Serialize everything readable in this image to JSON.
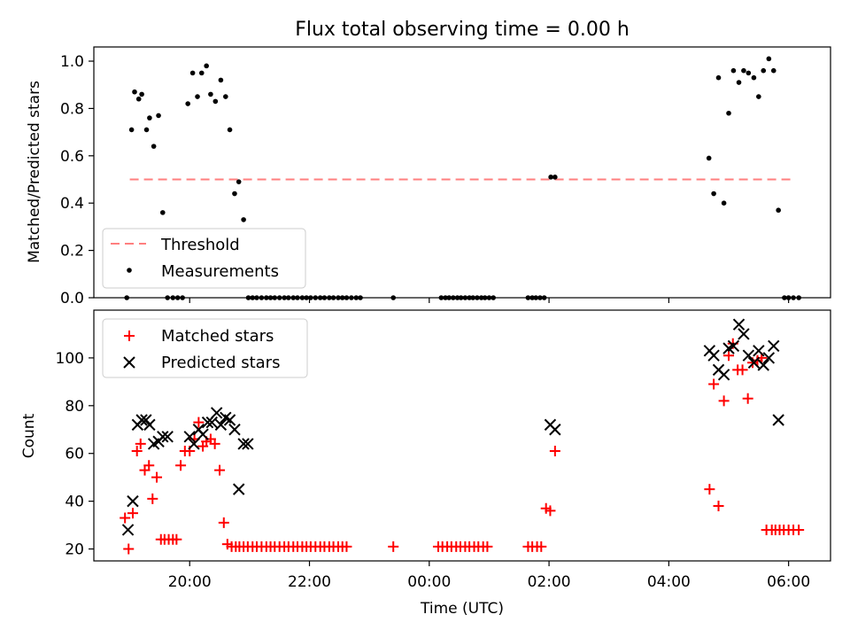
{
  "chart_data": [
    {
      "type": "scatter",
      "title": "Flux total observing time = 0.00 h",
      "xlabel": "",
      "ylabel": "Matched/Predicted stars",
      "x_unit": "hours relative to 00:00 UTC",
      "xlim": [
        -5.6,
        6.7
      ],
      "ylim": [
        0,
        1.06
      ],
      "yticks": [
        0.0,
        0.2,
        0.4,
        0.6,
        0.8,
        1.0
      ],
      "ytick_labels": [
        "0.0",
        "0.2",
        "0.4",
        "0.6",
        "0.8",
        "1.0"
      ],
      "legend_position": "lower-left",
      "grid": false,
      "threshold": {
        "name": "Threshold",
        "y": 0.5,
        "x_range": [
          -5.0,
          6.1
        ],
        "color": "#ff7f7f",
        "style": "dashed"
      },
      "series": [
        {
          "name": "Measurements",
          "color": "#000000",
          "marker": "dot",
          "x": [
            -5.05,
            -4.97,
            -4.92,
            -4.85,
            -4.8,
            -4.72,
            -4.67,
            -4.6,
            -4.52,
            -4.45,
            -4.37,
            -4.28,
            -4.2,
            -4.12,
            -4.03,
            -3.95,
            -3.87,
            -3.8,
            -3.72,
            -3.65,
            -3.57,
            -3.48,
            -3.4,
            -3.33,
            -3.25,
            -3.18,
            -3.1,
            -3.02,
            -2.95,
            -2.88,
            -2.8,
            -2.72,
            -2.65,
            -2.58,
            -2.5,
            -2.42,
            -2.35,
            -2.27,
            -2.2,
            -2.12,
            -2.05,
            -1.98,
            -1.9,
            -1.82,
            -1.75,
            -1.67,
            -1.6,
            -1.52,
            -1.45,
            -1.38,
            -1.3,
            -1.22,
            -1.15,
            -0.6,
            0.2,
            0.27,
            0.33,
            0.4,
            0.47,
            0.53,
            0.6,
            0.67,
            0.73,
            0.8,
            0.87,
            0.93,
            1.0,
            1.07,
            1.65,
            1.72,
            1.78,
            1.85,
            1.92,
            2.03,
            2.1,
            4.67,
            4.75,
            4.83,
            4.92,
            5.0,
            5.08,
            5.17,
            5.25,
            5.33,
            5.42,
            5.5,
            5.58,
            5.67,
            5.75,
            5.83,
            5.93,
            6.0,
            6.08,
            6.17
          ],
          "y": [
            0.0,
            0.71,
            0.87,
            0.84,
            0.86,
            0.71,
            0.76,
            0.64,
            0.77,
            0.36,
            0.0,
            0.0,
            0.0,
            0.0,
            0.82,
            0.95,
            0.85,
            0.95,
            0.98,
            0.86,
            0.83,
            0.92,
            0.85,
            0.71,
            0.44,
            0.49,
            0.33,
            0.0,
            0.0,
            0.0,
            0.0,
            0.0,
            0.0,
            0.0,
            0.0,
            0.0,
            0.0,
            0.0,
            0.0,
            0.0,
            0.0,
            0.0,
            0.0,
            0.0,
            0.0,
            0.0,
            0.0,
            0.0,
            0.0,
            0.0,
            0.0,
            0.0,
            0.0,
            0.0,
            0.0,
            0.0,
            0.0,
            0.0,
            0.0,
            0.0,
            0.0,
            0.0,
            0.0,
            0.0,
            0.0,
            0.0,
            0.0,
            0.0,
            0.0,
            0.0,
            0.0,
            0.0,
            0.0,
            0.51,
            0.51,
            0.59,
            0.44,
            0.93,
            0.4,
            0.78,
            0.96,
            0.91,
            0.96,
            0.95,
            0.93,
            0.85,
            0.96,
            1.01,
            0.96,
            0.37,
            0.0,
            0.0,
            0.0,
            0.0
          ]
        }
      ]
    },
    {
      "type": "scatter",
      "title": "",
      "xlabel": "Time (UTC)",
      "ylabel": "Count",
      "x_unit": "hours relative to 00:00 UTC",
      "xlim": [
        -5.6,
        6.7
      ],
      "ylim": [
        15,
        120
      ],
      "yticks": [
        20,
        40,
        60,
        80,
        100
      ],
      "ytick_labels": [
        "20",
        "40",
        "60",
        "80",
        "100"
      ],
      "xticks": [
        -4,
        -2,
        0,
        2,
        4,
        6
      ],
      "xtick_labels": [
        "20:00",
        "22:00",
        "00:00",
        "02:00",
        "04:00",
        "06:00"
      ],
      "legend_position": "upper-left",
      "grid": false,
      "series": [
        {
          "name": "Matched stars",
          "color": "#ff0000",
          "marker": "plus",
          "x": [
            -5.08,
            -5.02,
            -4.95,
            -4.88,
            -4.82,
            -4.75,
            -4.68,
            -4.62,
            -4.55,
            -4.48,
            -4.42,
            -4.35,
            -4.28,
            -4.22,
            -4.15,
            -4.08,
            -4.0,
            -3.92,
            -3.85,
            -3.78,
            -3.72,
            -3.65,
            -3.58,
            -3.5,
            -3.43,
            -3.37,
            -3.3,
            -3.23,
            -3.17,
            -3.1,
            -3.03,
            -2.95,
            -2.88,
            -2.8,
            -2.72,
            -2.65,
            -2.58,
            -2.5,
            -2.42,
            -2.35,
            -2.27,
            -2.2,
            -2.12,
            -2.05,
            -1.98,
            -1.9,
            -1.82,
            -1.75,
            -1.67,
            -1.6,
            -1.52,
            -1.45,
            -1.38,
            -0.6,
            0.15,
            0.22,
            0.3,
            0.37,
            0.45,
            0.52,
            0.6,
            0.67,
            0.75,
            0.82,
            0.9,
            0.97,
            1.65,
            1.72,
            1.8,
            1.87,
            1.95,
            2.02,
            2.1,
            4.68,
            4.75,
            4.83,
            4.92,
            5.0,
            5.07,
            5.15,
            5.23,
            5.32,
            5.4,
            5.48,
            5.55,
            5.63,
            5.72,
            5.78,
            5.85,
            5.92,
            6.0,
            6.08,
            6.17
          ],
          "y": [
            33,
            20,
            35,
            61,
            64,
            53,
            55,
            41,
            50,
            24,
            24,
            24,
            24,
            24,
            55,
            61,
            61,
            66,
            73,
            63,
            65,
            66,
            64,
            53,
            31,
            22,
            21,
            21,
            21,
            21,
            21,
            21,
            21,
            21,
            21,
            21,
            21,
            21,
            21,
            21,
            21,
            21,
            21,
            21,
            21,
            21,
            21,
            21,
            21,
            21,
            21,
            21,
            21,
            21,
            21,
            21,
            21,
            21,
            21,
            21,
            21,
            21,
            21,
            21,
            21,
            21,
            21,
            21,
            21,
            21,
            37,
            36,
            61,
            45,
            89,
            38,
            82,
            101,
            106,
            95,
            95,
            83,
            98,
            99,
            100,
            28,
            28,
            28,
            28,
            28,
            28,
            28,
            28
          ]
        },
        {
          "name": "Predicted stars",
          "color": "#000000",
          "marker": "x",
          "x": [
            -5.03,
            -4.95,
            -4.87,
            -4.8,
            -4.73,
            -4.67,
            -4.6,
            -4.52,
            -4.45,
            -4.37,
            -4.0,
            -3.93,
            -3.85,
            -3.78,
            -3.7,
            -3.63,
            -3.55,
            -3.48,
            -3.4,
            -3.33,
            -3.25,
            -3.18,
            -3.1,
            -3.03,
            2.02,
            2.1,
            4.68,
            4.75,
            4.83,
            4.92,
            5.0,
            5.08,
            5.17,
            5.25,
            5.33,
            5.42,
            5.5,
            5.58,
            5.67,
            5.75,
            5.83
          ],
          "y": [
            28,
            40,
            72,
            74,
            74,
            72,
            64,
            65,
            67,
            67,
            67,
            64,
            70,
            68,
            73,
            73,
            77,
            72,
            75,
            74,
            70,
            45,
            64,
            64,
            72,
            70,
            103,
            101,
            95,
            93,
            104,
            105,
            114,
            110,
            101,
            98,
            103,
            97,
            100,
            105,
            74
          ]
        }
      ]
    }
  ]
}
